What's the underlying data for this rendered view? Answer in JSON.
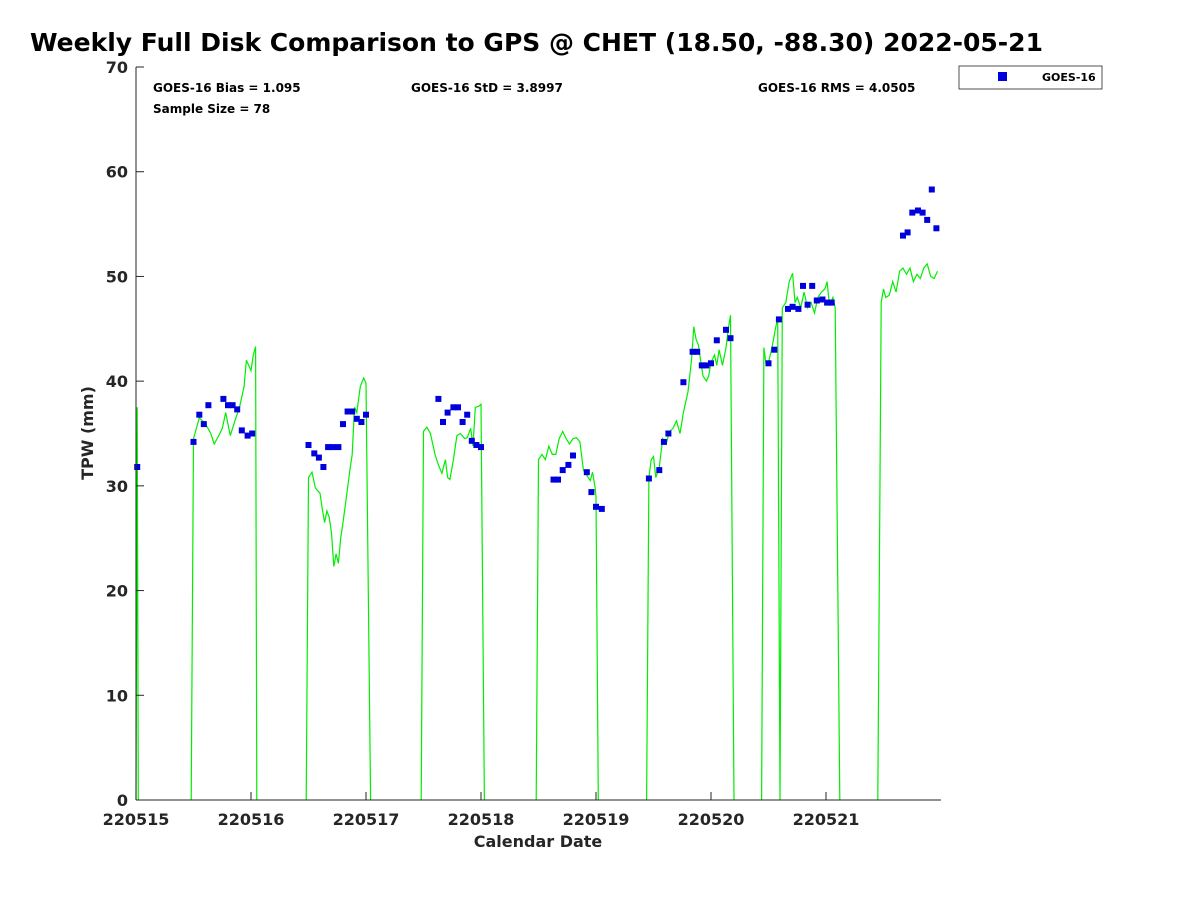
{
  "title": "Weekly Full Disk Comparison to GPS @ CHET (18.50, -88.30) 2022-05-21",
  "stats": {
    "bias": "GOES-16 Bias = 1.095",
    "std": "GOES-16 StD = 3.8997",
    "rms": "GOES-16 RMS = 4.0505",
    "sample": "Sample Size = 78"
  },
  "chart_data": {
    "type": "scatter",
    "xlabel": "Calendar Date",
    "ylabel": "TPW (mm)",
    "xlim": [
      0,
      7
    ],
    "ylim": [
      0,
      70
    ],
    "yticks": [
      0,
      10,
      20,
      30,
      40,
      50,
      60,
      70
    ],
    "xticks": [
      {
        "value": 0,
        "label": "220515"
      },
      {
        "value": 1,
        "label": "220516"
      },
      {
        "value": 2,
        "label": "220517"
      },
      {
        "value": 3,
        "label": "220518"
      },
      {
        "value": 4,
        "label": "220519"
      },
      {
        "value": 5,
        "label": "220520"
      },
      {
        "value": 6,
        "label": "220521"
      }
    ],
    "legend": {
      "position": "top-right-outside",
      "entries": [
        "GOES-16"
      ]
    },
    "grid": false,
    "colors": {
      "goes": "#0000dd",
      "gps": "#00ee00"
    },
    "series": [
      {
        "name": "GOES-16",
        "kind": "markers",
        "points": [
          [
            0.01,
            31.8
          ],
          [
            0.5,
            34.2
          ],
          [
            0.55,
            36.8
          ],
          [
            0.59,
            35.9
          ],
          [
            0.63,
            37.7
          ],
          [
            0.76,
            38.3
          ],
          [
            0.8,
            37.7
          ],
          [
            0.84,
            37.7
          ],
          [
            0.88,
            37.3
          ],
          [
            0.92,
            35.3
          ],
          [
            0.97,
            34.8
          ],
          [
            1.01,
            35.0
          ],
          [
            1.5,
            33.9
          ],
          [
            1.55,
            33.1
          ],
          [
            1.59,
            32.7
          ],
          [
            1.63,
            31.8
          ],
          [
            1.67,
            33.7
          ],
          [
            1.71,
            33.7
          ],
          [
            1.76,
            33.7
          ],
          [
            1.8,
            35.9
          ],
          [
            1.84,
            37.1
          ],
          [
            1.88,
            37.1
          ],
          [
            1.92,
            36.4
          ],
          [
            1.96,
            36.1
          ],
          [
            2.0,
            36.8
          ],
          [
            2.63,
            38.3
          ],
          [
            2.67,
            36.1
          ],
          [
            2.71,
            37.0
          ],
          [
            2.76,
            37.5
          ],
          [
            2.8,
            37.5
          ],
          [
            2.84,
            36.1
          ],
          [
            2.88,
            36.8
          ],
          [
            2.92,
            34.3
          ],
          [
            2.96,
            33.9
          ],
          [
            3.0,
            33.7
          ],
          [
            3.63,
            30.6
          ],
          [
            3.67,
            30.6
          ],
          [
            3.71,
            31.5
          ],
          [
            3.76,
            32.0
          ],
          [
            3.8,
            32.9
          ],
          [
            3.92,
            31.3
          ],
          [
            3.96,
            29.4
          ],
          [
            4.0,
            28.0
          ],
          [
            4.05,
            27.8
          ],
          [
            4.46,
            30.7
          ],
          [
            4.55,
            31.5
          ],
          [
            4.59,
            34.2
          ],
          [
            4.63,
            35.0
          ],
          [
            4.76,
            39.9
          ],
          [
            4.84,
            42.8
          ],
          [
            4.88,
            42.8
          ],
          [
            4.92,
            41.5
          ],
          [
            4.96,
            41.5
          ],
          [
            5.0,
            41.7
          ],
          [
            5.05,
            43.9
          ],
          [
            5.13,
            44.9
          ],
          [
            5.17,
            44.1
          ],
          [
            5.5,
            41.7
          ],
          [
            5.55,
            43.0
          ],
          [
            5.59,
            45.9
          ],
          [
            5.67,
            46.9
          ],
          [
            5.71,
            47.1
          ],
          [
            5.76,
            46.9
          ],
          [
            5.8,
            49.1
          ],
          [
            5.84,
            47.3
          ],
          [
            5.88,
            49.1
          ],
          [
            5.92,
            47.7
          ],
          [
            5.97,
            47.8
          ],
          [
            6.01,
            47.5
          ],
          [
            6.05,
            47.5
          ],
          [
            6.67,
            53.9
          ],
          [
            6.71,
            54.2
          ],
          [
            6.75,
            56.1
          ],
          [
            6.8,
            56.3
          ],
          [
            6.84,
            56.1
          ],
          [
            6.88,
            55.4
          ],
          [
            6.92,
            58.3
          ],
          [
            6.96,
            54.6
          ]
        ]
      },
      {
        "name": "",
        "kind": "line",
        "segments": [
          [
            [
              0.0,
              0.0
            ],
            [
              0.01,
              37.5
            ],
            [
              0.02,
              0.0
            ]
          ],
          [
            [
              0.48,
              0.0
            ],
            [
              0.5,
              34.5
            ],
            [
              0.55,
              36.5
            ],
            [
              0.6,
              36.0
            ],
            [
              0.65,
              35.0
            ],
            [
              0.68,
              34.0
            ],
            [
              0.72,
              34.8
            ],
            [
              0.75,
              35.5
            ],
            [
              0.78,
              37.0
            ],
            [
              0.82,
              34.8
            ],
            [
              0.86,
              36.2
            ],
            [
              0.9,
              37.5
            ],
            [
              0.94,
              39.5
            ],
            [
              0.96,
              42.0
            ],
            [
              0.98,
              41.5
            ],
            [
              1.0,
              41.0
            ],
            [
              1.02,
              42.5
            ],
            [
              1.04,
              43.3
            ],
            [
              1.05,
              0.0
            ]
          ],
          [
            [
              1.48,
              0.0
            ],
            [
              1.5,
              30.8
            ],
            [
              1.53,
              31.3
            ],
            [
              1.56,
              29.8
            ],
            [
              1.6,
              29.3
            ],
            [
              1.62,
              27.8
            ],
            [
              1.64,
              26.5
            ],
            [
              1.66,
              27.6
            ],
            [
              1.68,
              27.0
            ],
            [
              1.7,
              25.5
            ],
            [
              1.72,
              22.3
            ],
            [
              1.74,
              23.5
            ],
            [
              1.76,
              22.6
            ],
            [
              1.78,
              25.0
            ],
            [
              1.8,
              26.5
            ],
            [
              1.83,
              29.0
            ],
            [
              1.86,
              31.5
            ],
            [
              1.88,
              33.0
            ],
            [
              1.9,
              37.5
            ],
            [
              1.92,
              37.0
            ],
            [
              1.95,
              39.5
            ],
            [
              1.98,
              40.3
            ],
            [
              2.0,
              39.8
            ],
            [
              2.04,
              0.0
            ]
          ],
          [
            [
              2.48,
              0.0
            ],
            [
              2.5,
              35.2
            ],
            [
              2.53,
              35.6
            ],
            [
              2.56,
              35.0
            ],
            [
              2.6,
              33.0
            ],
            [
              2.63,
              32.0
            ],
            [
              2.66,
              31.2
            ],
            [
              2.69,
              32.5
            ],
            [
              2.71,
              30.8
            ],
            [
              2.73,
              30.6
            ],
            [
              2.76,
              32.5
            ],
            [
              2.79,
              34.8
            ],
            [
              2.82,
              35.0
            ],
            [
              2.86,
              34.5
            ],
            [
              2.88,
              34.6
            ],
            [
              2.91,
              35.5
            ],
            [
              2.93,
              33.8
            ],
            [
              2.95,
              37.5
            ],
            [
              2.98,
              37.6
            ],
            [
              3.0,
              37.8
            ],
            [
              3.03,
              0.0
            ]
          ],
          [
            [
              3.48,
              0.0
            ],
            [
              3.5,
              32.5
            ],
            [
              3.53,
              33.0
            ],
            [
              3.56,
              32.5
            ],
            [
              3.59,
              33.8
            ],
            [
              3.62,
              33.0
            ],
            [
              3.65,
              33.0
            ],
            [
              3.68,
              34.5
            ],
            [
              3.71,
              35.2
            ],
            [
              3.74,
              34.5
            ],
            [
              3.77,
              34.0
            ],
            [
              3.8,
              34.5
            ],
            [
              3.83,
              34.6
            ],
            [
              3.86,
              34.2
            ],
            [
              3.89,
              31.5
            ],
            [
              3.92,
              31.0
            ],
            [
              3.95,
              30.5
            ],
            [
              3.97,
              31.3
            ],
            [
              3.99,
              30.0
            ],
            [
              4.0,
              29.0
            ],
            [
              4.02,
              0.0
            ]
          ],
          [
            [
              4.44,
              0.0
            ],
            [
              4.46,
              30.8
            ],
            [
              4.48,
              32.5
            ],
            [
              4.5,
              32.8
            ],
            [
              4.52,
              30.8
            ],
            [
              4.55,
              31.8
            ],
            [
              4.58,
              34.5
            ],
            [
              4.61,
              34.0
            ],
            [
              4.64,
              35.2
            ],
            [
              4.67,
              35.5
            ],
            [
              4.7,
              36.2
            ],
            [
              4.73,
              35.0
            ],
            [
              4.76,
              37.0
            ],
            [
              4.8,
              39.0
            ],
            [
              4.83,
              42.0
            ],
            [
              4.85,
              45.2
            ],
            [
              4.87,
              44.0
            ],
            [
              4.89,
              43.5
            ],
            [
              4.91,
              42.0
            ],
            [
              4.93,
              40.5
            ],
            [
              4.96,
              40.0
            ],
            [
              4.98,
              40.5
            ],
            [
              5.0,
              41.8
            ],
            [
              5.03,
              42.5
            ],
            [
              5.05,
              41.5
            ],
            [
              5.07,
              43.0
            ],
            [
              5.1,
              41.5
            ],
            [
              5.13,
              43.2
            ],
            [
              5.15,
              45.0
            ],
            [
              5.17,
              46.3
            ],
            [
              5.2,
              0.0
            ]
          ],
          [
            [
              5.44,
              0.0
            ],
            [
              5.46,
              43.2
            ],
            [
              5.48,
              41.5
            ],
            [
              5.5,
              41.8
            ],
            [
              5.53,
              43.2
            ],
            [
              5.56,
              45.0
            ],
            [
              5.58,
              46.0
            ],
            [
              5.6,
              0.0
            ],
            [
              5.62,
              47.0
            ],
            [
              5.65,
              47.5
            ],
            [
              5.68,
              49.5
            ],
            [
              5.71,
              50.3
            ],
            [
              5.73,
              47.5
            ],
            [
              5.75,
              48.0
            ],
            [
              5.78,
              47.0
            ],
            [
              5.81,
              48.5
            ],
            [
              5.84,
              47.0
            ],
            [
              5.87,
              47.5
            ],
            [
              5.9,
              46.5
            ],
            [
              5.93,
              48.0
            ],
            [
              5.96,
              48.5
            ],
            [
              5.99,
              48.8
            ],
            [
              6.01,
              49.5
            ],
            [
              6.03,
              47.2
            ],
            [
              6.06,
              48.0
            ],
            [
              6.08,
              47.0
            ],
            [
              6.12,
              0.0
            ]
          ],
          [
            [
              6.45,
              0.0
            ],
            [
              6.48,
              47.5
            ],
            [
              6.5,
              48.8
            ],
            [
              6.52,
              48.0
            ],
            [
              6.55,
              48.2
            ],
            [
              6.58,
              49.5
            ],
            [
              6.61,
              48.5
            ],
            [
              6.64,
              50.5
            ],
            [
              6.67,
              50.8
            ],
            [
              6.7,
              50.2
            ],
            [
              6.73,
              50.8
            ],
            [
              6.76,
              49.5
            ],
            [
              6.79,
              50.2
            ],
            [
              6.82,
              49.8
            ],
            [
              6.85,
              50.8
            ],
            [
              6.88,
              51.2
            ],
            [
              6.91,
              50.0
            ],
            [
              6.94,
              49.8
            ],
            [
              6.97,
              50.5
            ]
          ]
        ]
      }
    ]
  }
}
